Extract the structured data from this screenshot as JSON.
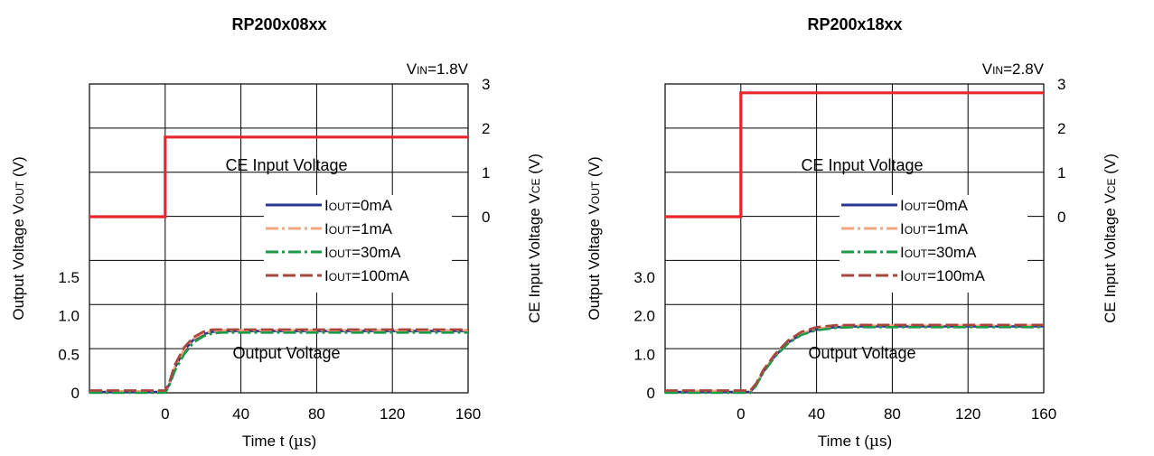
{
  "chart_data": [
    {
      "type": "line",
      "title": "RP200x08xx",
      "condition": {
        "main": "V",
        "sub": "IN",
        "rest": "=1.8V"
      },
      "xlabel": {
        "main": "Time t (",
        "mu": "µ",
        "rest": "s)"
      },
      "ylabel_left": {
        "main": "Output Voltage V",
        "sub": "OUT",
        "rest": " (V)"
      },
      "ylabel_right": {
        "main": "CE Input Voltage V",
        "sub": "CE",
        "rest": " (V)"
      },
      "xlim": [
        -40,
        160
      ],
      "x_ticks": [
        "0",
        "40",
        "80",
        "120",
        "160"
      ],
      "x_tick_values": [
        0,
        40,
        80,
        120,
        160
      ],
      "y_left_ticks": [
        "0",
        "0.5",
        "1.0",
        "1.5"
      ],
      "y_left_tick_values": [
        0,
        0.5,
        1.0,
        1.5
      ],
      "y_left_range": [
        0,
        4
      ],
      "y_right_ticks": [
        "0",
        "1",
        "2",
        "3"
      ],
      "y_right_tick_values": [
        0,
        1,
        2,
        3
      ],
      "y_right_range": [
        -3.98,
        3
      ],
      "grid": true,
      "annotations": {
        "ce": "CE Input Voltage",
        "out": "Output Voltage"
      },
      "legend_placement": "center-right",
      "ce_series": {
        "axis": "right",
        "color": "#e8262b",
        "x": [
          -40,
          0,
          0,
          160
        ],
        "y": [
          0,
          0,
          1.8,
          1.8
        ]
      },
      "series": [
        {
          "name_main": "I",
          "name_sub": "OUT",
          "name_rest": "=0mA",
          "color": "#2b3590",
          "dash": "",
          "x": [
            -40,
            0,
            2,
            5,
            10,
            15,
            20,
            25,
            30,
            35,
            40,
            160
          ],
          "y": [
            0.01,
            0.01,
            0.1,
            0.32,
            0.55,
            0.69,
            0.76,
            0.79,
            0.8,
            0.8,
            0.8,
            0.8
          ]
        },
        {
          "name_main": "I",
          "name_sub": "OUT",
          "name_rest": "=1mA",
          "color": "#f2a583",
          "dash": "14,4,3,4",
          "x": [
            -40,
            0,
            2,
            5,
            10,
            15,
            20,
            25,
            30,
            35,
            40,
            160
          ],
          "y": [
            0.02,
            0.02,
            0.1,
            0.33,
            0.56,
            0.7,
            0.77,
            0.8,
            0.81,
            0.81,
            0.81,
            0.81
          ]
        },
        {
          "name_main": "I",
          "name_sub": "OUT",
          "name_rest": "=30mA",
          "color": "#1a9a47",
          "dash": "14,4,3,4",
          "x": [
            -40,
            0,
            2,
            5,
            10,
            15,
            20,
            25,
            30,
            35,
            40,
            160
          ],
          "y": [
            0,
            0,
            0.08,
            0.28,
            0.5,
            0.65,
            0.73,
            0.77,
            0.78,
            0.78,
            0.78,
            0.78
          ]
        },
        {
          "name_main": "I",
          "name_sub": "OUT",
          "name_rest": "=100mA",
          "color": "#a8453c",
          "dash": "14,5",
          "x": [
            -40,
            0,
            2,
            5,
            10,
            15,
            20,
            25,
            30,
            35,
            40,
            160
          ],
          "y": [
            0.03,
            0.03,
            0.12,
            0.36,
            0.59,
            0.72,
            0.79,
            0.82,
            0.82,
            0.82,
            0.82,
            0.82
          ]
        }
      ]
    },
    {
      "type": "line",
      "title": "RP200x18xx",
      "condition": {
        "main": "V",
        "sub": "IN",
        "rest": "=2.8V"
      },
      "xlabel": {
        "main": "Time t (",
        "mu": "µ",
        "rest": "s)"
      },
      "ylabel_left": {
        "main": "Output Voltage V",
        "sub": "OUT",
        "rest": " (V)"
      },
      "ylabel_right": {
        "main": "CE Input Voltage V",
        "sub": "CE",
        "rest": " (V)"
      },
      "xlim": [
        -40,
        160
      ],
      "x_ticks": [
        "0",
        "40",
        "80",
        "120",
        "160"
      ],
      "x_tick_values": [
        0,
        40,
        80,
        120,
        160
      ],
      "y_left_ticks": [
        "0",
        "1.0",
        "2.0",
        "3.0"
      ],
      "y_left_tick_values": [
        0,
        1.0,
        2.0,
        3.0
      ],
      "y_left_range": [
        0,
        8
      ],
      "y_right_ticks": [
        "0",
        "1",
        "2",
        "3"
      ],
      "y_right_tick_values": [
        0,
        1,
        2,
        3
      ],
      "y_right_range": [
        -3.98,
        3
      ],
      "grid": true,
      "annotations": {
        "ce": "CE Input Voltage",
        "out": "Output Voltage"
      },
      "legend_placement": "center-right",
      "ce_series": {
        "axis": "right",
        "color": "#e8262b",
        "x": [
          -40,
          0,
          0,
          160
        ],
        "y": [
          0,
          0,
          2.8,
          2.8
        ]
      },
      "series": [
        {
          "name_main": "I",
          "name_sub": "OUT",
          "name_rest": "=0mA",
          "color": "#2b3590",
          "dash": "",
          "x": [
            -40,
            5,
            8,
            12,
            18,
            25,
            32,
            40,
            50,
            60,
            70,
            160
          ],
          "y": [
            0.02,
            0.02,
            0.2,
            0.55,
            0.95,
            1.3,
            1.52,
            1.64,
            1.7,
            1.72,
            1.72,
            1.72
          ]
        },
        {
          "name_main": "I",
          "name_sub": "OUT",
          "name_rest": "=1mA",
          "color": "#f2a583",
          "dash": "14,4,3,4",
          "x": [
            -40,
            5,
            8,
            12,
            18,
            25,
            32,
            40,
            50,
            60,
            70,
            160
          ],
          "y": [
            0.05,
            0.05,
            0.22,
            0.57,
            0.97,
            1.32,
            1.54,
            1.66,
            1.72,
            1.74,
            1.74,
            1.74
          ]
        },
        {
          "name_main": "I",
          "name_sub": "OUT",
          "name_rest": "=30mA",
          "color": "#1a9a47",
          "dash": "14,4,3,4",
          "x": [
            -40,
            5,
            8,
            12,
            18,
            25,
            32,
            40,
            50,
            60,
            70,
            160
          ],
          "y": [
            0,
            0,
            0.18,
            0.53,
            0.93,
            1.28,
            1.5,
            1.62,
            1.68,
            1.7,
            1.7,
            1.7
          ]
        },
        {
          "name_main": "I",
          "name_sub": "OUT",
          "name_rest": "=100mA",
          "color": "#a8453c",
          "dash": "14,5",
          "x": [
            -40,
            5,
            8,
            12,
            18,
            25,
            32,
            40,
            50,
            60,
            70,
            160
          ],
          "y": [
            0.06,
            0.06,
            0.24,
            0.6,
            1.0,
            1.36,
            1.58,
            1.7,
            1.75,
            1.76,
            1.76,
            1.76
          ]
        }
      ]
    }
  ]
}
